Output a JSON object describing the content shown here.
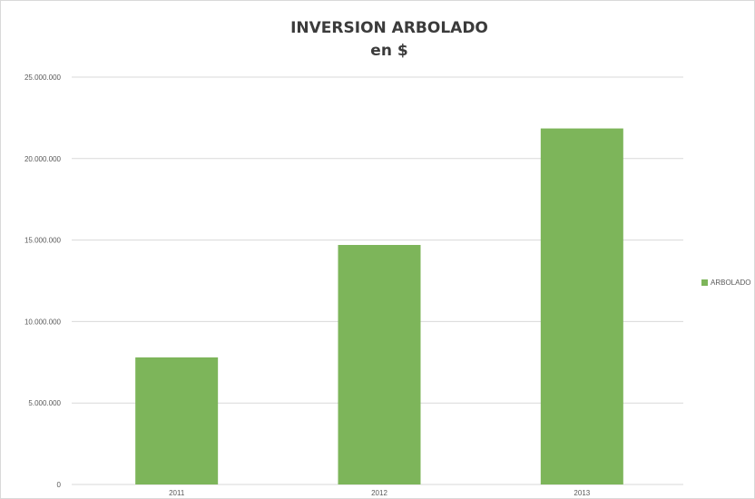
{
  "chart_data": {
    "type": "bar",
    "title": "INVERSION ARBOLADO",
    "subtitle": "en $",
    "categories": [
      "2011",
      "2012",
      "2013"
    ],
    "series": [
      {
        "name": "ARBOLADO",
        "values": [
          7800000,
          14700000,
          21850000
        ],
        "color": "#7db55a"
      }
    ],
    "y_ticks": [
      "0",
      "5.000.000",
      "10.000.000",
      "15.000.000",
      "20.000.000",
      "25.000.000"
    ],
    "ylim": [
      0,
      25000000
    ],
    "grid": true,
    "legend_position": "right"
  },
  "colors": {
    "bar": "#7db55a",
    "gridline": "#d9d9d9",
    "axis_text": "#595959",
    "title": "#3b3b3b"
  }
}
